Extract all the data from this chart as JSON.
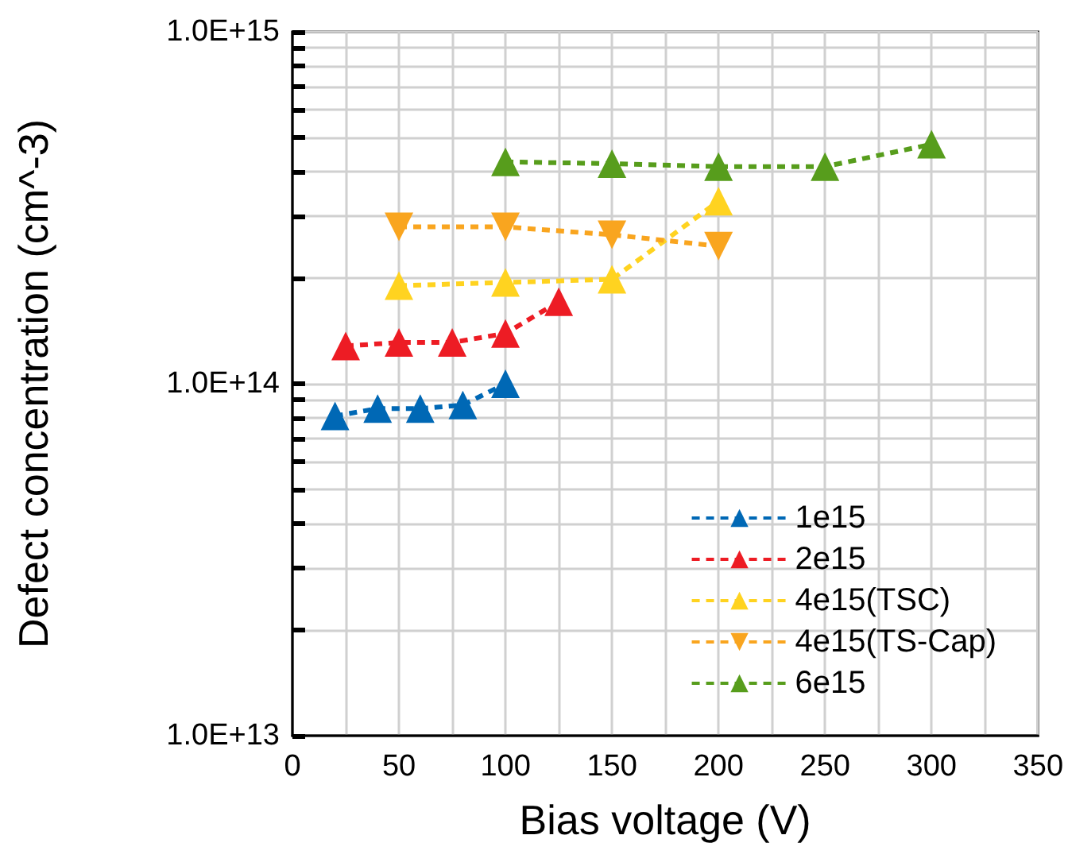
{
  "chart_data": {
    "type": "line",
    "xlabel": "Bias voltage (V)",
    "ylabel": "Defect concentration (cm^-3)",
    "log": "y",
    "grid": true,
    "legend": "bottom right",
    "line_style": "dashed",
    "xlim": [
      0,
      350
    ],
    "xticks": [
      0,
      {
        "value": 25,
        "label": null
      },
      50,
      {
        "value": 75,
        "label": null
      },
      100,
      {
        "value": 125,
        "label": null
      },
      150,
      {
        "value": 175,
        "label": null
      },
      200,
      {
        "value": 225,
        "label": null
      },
      250,
      {
        "value": 275,
        "label": null
      },
      300,
      {
        "value": 325,
        "label": null
      },
      350
    ],
    "ylim": [
      10000000000000.0,
      1000000000000000.0
    ],
    "yticks": [
      {
        "value": 10000000000000.0,
        "label": "1.0E+13"
      },
      {
        "value": 20000000000000.0,
        "label": null
      },
      {
        "value": 30000000000000.0,
        "label": null
      },
      {
        "value": 40000000000000.0,
        "label": null
      },
      {
        "value": 50000000000000.0,
        "label": null
      },
      {
        "value": 60000000000000.0,
        "label": null
      },
      {
        "value": 70000000000000.0,
        "label": null
      },
      {
        "value": 80000000000000.0,
        "label": null
      },
      {
        "value": 90000000000000.0,
        "label": null
      },
      {
        "value": 100000000000000.0,
        "label": "1.0E+14"
      },
      {
        "value": 200000000000000.0,
        "label": null
      },
      {
        "value": 300000000000000.0,
        "label": null
      },
      {
        "value": 400000000000000.0,
        "label": null
      },
      {
        "value": 500000000000000.0,
        "label": null
      },
      {
        "value": 600000000000000.0,
        "label": null
      },
      {
        "value": 700000000000000.0,
        "label": null
      },
      {
        "value": 800000000000000.0,
        "label": null
      },
      {
        "value": 900000000000000.0,
        "label": null
      },
      {
        "value": 1000000000000000.0,
        "label": "1.0E+15"
      }
    ],
    "series": [
      {
        "name": "1e15",
        "color": "#0068b5",
        "marker": "triangle",
        "x": [
          20,
          40,
          60,
          80,
          100
        ],
        "values": [
          81000000000000.0,
          85000000000000.0,
          85000000000000.0,
          87000000000000.0,
          100000000000000.0
        ]
      },
      {
        "name": "2e15",
        "color": "#ed1c24",
        "marker": "triangle",
        "x": [
          25,
          50,
          75,
          100,
          125
        ],
        "values": [
          128000000000000.0,
          131000000000000.0,
          131000000000000.0,
          139000000000000.0,
          171000000000000.0
        ]
      },
      {
        "name": "4e15(TSC)",
        "color": "#ffd320",
        "marker": "triangle",
        "x": [
          50,
          100,
          150,
          200
        ],
        "values": [
          190000000000000.0,
          194000000000000.0,
          198000000000000.0,
          330000000000000.0
        ]
      },
      {
        "name": "4e15(TS-Cap)",
        "color": "#f9a51f",
        "marker": "triangle-down",
        "x": [
          50,
          100,
          150,
          200
        ],
        "values": [
          279000000000000.0,
          279000000000000.0,
          265000000000000.0,
          246000000000000.0
        ]
      },
      {
        "name": "6e15",
        "color": "#579d1c",
        "marker": "triangle",
        "x": [
          100,
          150,
          200,
          250,
          300
        ],
        "values": [
          427000000000000.0,
          422000000000000.0,
          414000000000000.0,
          414000000000000.0,
          479000000000000.0
        ]
      }
    ]
  }
}
